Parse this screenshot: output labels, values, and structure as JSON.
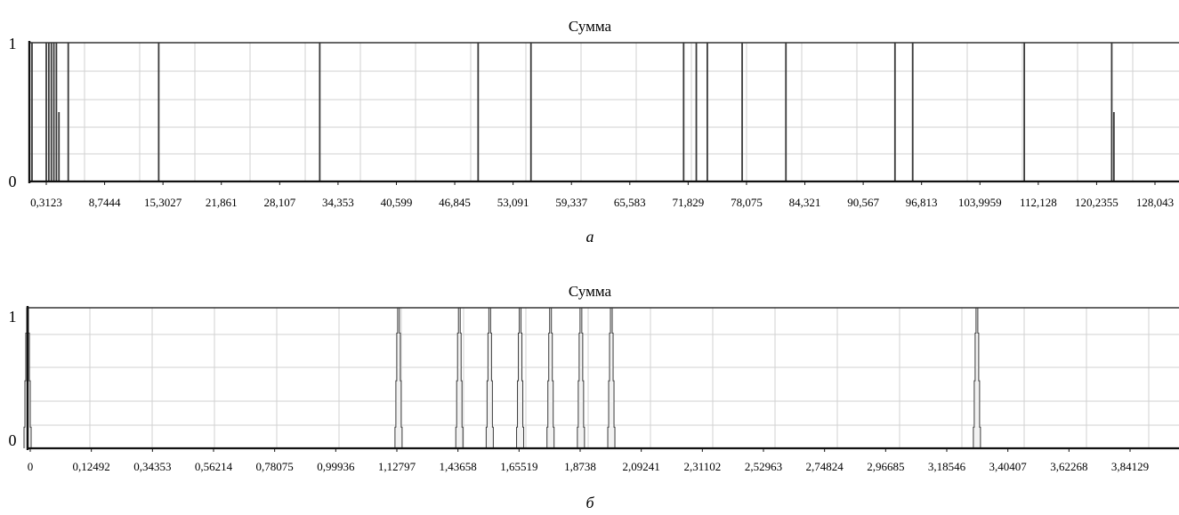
{
  "chart_data": [
    {
      "type": "line",
      "title": "Сумма",
      "caption": "а",
      "ylim": [
        0,
        1
      ],
      "y_ticks": [
        "0",
        "1"
      ],
      "x_tick_labels": [
        "0,3123",
        "8,7444",
        "15,3027",
        "21,861",
        "28,107",
        "34,353",
        "40,599",
        "46,845",
        "53,091",
        "59,337",
        "65,583",
        "71,829",
        "78,075",
        "84,321",
        "90,567",
        "96,813",
        "103,9959",
        "112,128",
        "120,2355",
        "128,043"
      ],
      "xlim": [
        0,
        136
      ],
      "grid": true,
      "series": [
        {
          "spikes": [
            {
              "x": 0.0,
              "y": 1
            },
            {
              "x": 0.3123,
              "y": 1
            },
            {
              "x": 2.0,
              "y": 1
            },
            {
              "x": 2.3,
              "y": 1
            },
            {
              "x": 2.6,
              "y": 1
            },
            {
              "x": 2.9,
              "y": 1
            },
            {
              "x": 3.2,
              "y": 1
            },
            {
              "x": 3.5,
              "y": 0.5
            },
            {
              "x": 4.6,
              "y": 1
            },
            {
              "x": 15.3027,
              "y": 1
            },
            {
              "x": 34.353,
              "y": 1
            },
            {
              "x": 53.091,
              "y": 1
            },
            {
              "x": 59.337,
              "y": 1
            },
            {
              "x": 77.4,
              "y": 1
            },
            {
              "x": 78.9,
              "y": 1
            },
            {
              "x": 80.2,
              "y": 1
            },
            {
              "x": 84.321,
              "y": 1
            },
            {
              "x": 89.5,
              "y": 1
            },
            {
              "x": 102.4,
              "y": 1
            },
            {
              "x": 104.5,
              "y": 1
            },
            {
              "x": 117.7,
              "y": 1
            },
            {
              "x": 128.043,
              "y": 1
            },
            {
              "x": 128.3,
              "y": 0.5
            }
          ]
        }
      ]
    },
    {
      "type": "line",
      "title": "Сумма",
      "caption": "б",
      "ylim": [
        0,
        1
      ],
      "y_ticks": [
        "0",
        "1"
      ],
      "x_tick_labels": [
        "0",
        "0,12492",
        "0,34353",
        "0,56214",
        "0,78075",
        "0,99936",
        "1,12797",
        "1,43658",
        "1,65519",
        "1,8738",
        "2,09241",
        "2,31102",
        "2,52963",
        "2,74824",
        "2,96685",
        "3,18546",
        "3,40407",
        "3,62268",
        "3,84129"
      ],
      "xlim": [
        0,
        4.14
      ],
      "grid": true,
      "series": [
        {
          "spikes": [
            {
              "x": 0.0,
              "y": 1
            },
            {
              "x": 1.3338,
              "y": 1
            },
            {
              "x": 1.5524,
              "y": 1
            },
            {
              "x": 1.6617,
              "y": 1
            },
            {
              "x": 1.771,
              "y": 1
            },
            {
              "x": 1.8803,
              "y": 1
            },
            {
              "x": 1.9896,
              "y": 1
            },
            {
              "x": 2.0989,
              "y": 1
            },
            {
              "x": 3.4134,
              "y": 1
            }
          ]
        }
      ]
    }
  ]
}
